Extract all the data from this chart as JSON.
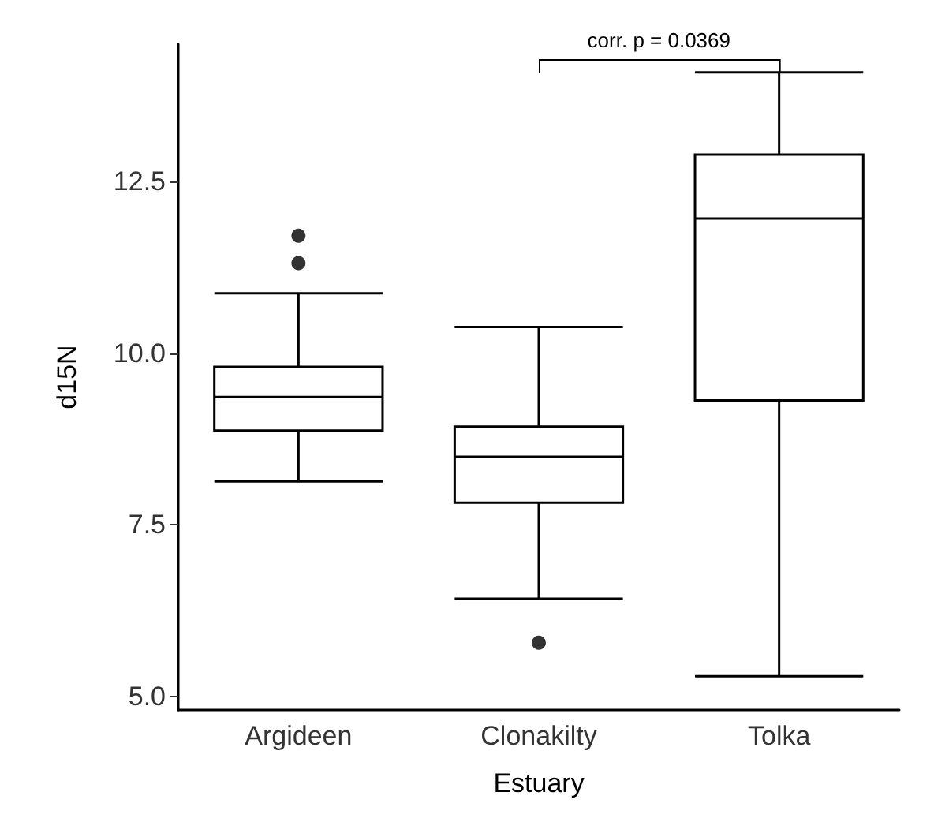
{
  "chart_data": {
    "type": "box",
    "xlabel": "Estuary",
    "ylabel": "d15N",
    "categories": [
      "Argideen",
      "Clonakilty",
      "Tolka"
    ],
    "boxes": [
      {
        "low": 8.13,
        "q1": 8.87,
        "median": 9.36,
        "q3": 9.8,
        "high": 10.87,
        "outliers": [
          11.31,
          11.71
        ]
      },
      {
        "low": 6.42,
        "q1": 7.82,
        "median": 8.49,
        "q3": 8.93,
        "high": 10.38,
        "outliers": [
          5.78
        ]
      },
      {
        "low": 5.29,
        "q1": 9.31,
        "median": 11.96,
        "q3": 12.89,
        "high": 14.09
      }
    ],
    "color": "#000000",
    "marker": "circle",
    "grid": false,
    "ylim": [
      4.8,
      14.5
    ],
    "yticks": [
      {
        "value": 5,
        "label": "5.0"
      },
      {
        "value": 7.5,
        "label": "7.5"
      },
      {
        "value": 10,
        "label": "10.0"
      },
      {
        "value": 12.5,
        "label": "12.5"
      }
    ],
    "annotations": [
      "corr. p = 0.0369"
    ]
  }
}
